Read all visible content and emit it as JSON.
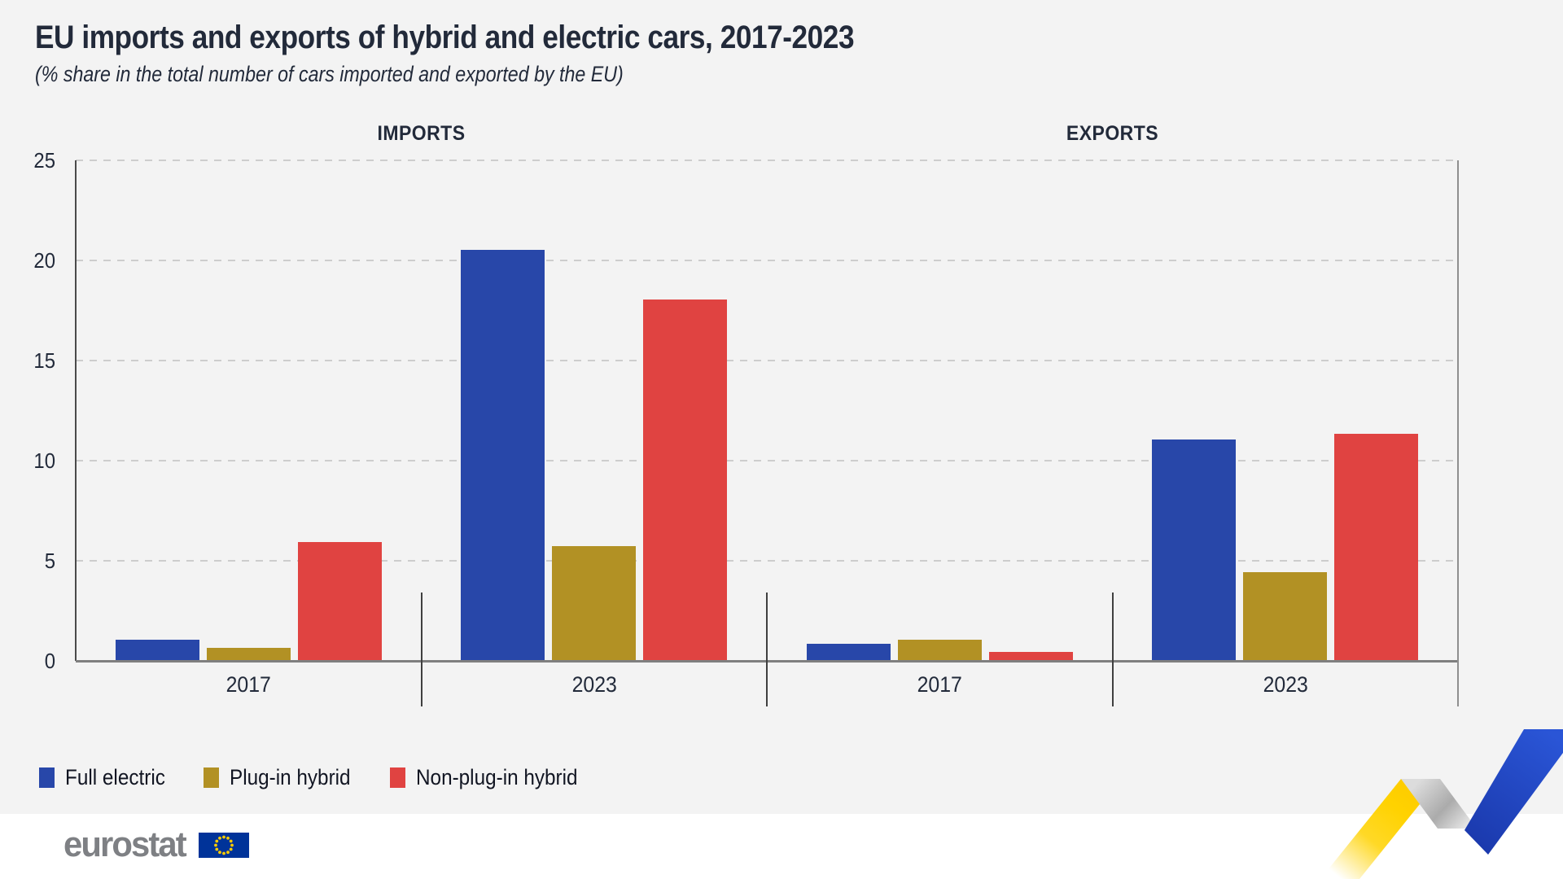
{
  "header": {
    "title": "EU imports and exports of hybrid and electric cars, 2017-2023",
    "subtitle": "(% share in the total number of cars imported and exported by the EU)"
  },
  "chart_data": {
    "type": "bar",
    "title": "EU imports and exports of hybrid and electric cars, 2017-2023",
    "subtitle": "(% share in the total number of cars imported and exported by the EU)",
    "unit": "% share",
    "panels": [
      {
        "label": "IMPORTS",
        "groups": [
          {
            "year": "2017",
            "values": [
              1.0,
              0.6,
              5.9
            ]
          },
          {
            "year": "2023",
            "values": [
              20.5,
              5.7,
              18.0
            ]
          }
        ]
      },
      {
        "label": "EXPORTS",
        "groups": [
          {
            "year": "2017",
            "values": [
              0.8,
              1.0,
              0.4
            ]
          },
          {
            "year": "2023",
            "values": [
              11.0,
              4.4,
              11.3
            ]
          }
        ]
      }
    ],
    "series": [
      {
        "name": "Full electric",
        "color": "#2847a9"
      },
      {
        "name": "Plug-in hybrid",
        "color": "#b29124"
      },
      {
        "name": "Non-plug-in hybrid",
        "color": "#e04341"
      }
    ],
    "y_axis": {
      "min": 0,
      "max": 25,
      "tick_step": 5,
      "ticks": [
        0,
        5,
        10,
        15,
        20,
        25
      ]
    },
    "grid": "horizontal-dashed",
    "legend_position": "bottom-left"
  },
  "footer": {
    "logo_text": "eurostat"
  },
  "colors": {
    "background": "#f3f3f3",
    "footer_background": "#ffffff",
    "text": "#222a3a",
    "axis": "#4a4a4a",
    "baseline": "#7f7f7f",
    "gridline": "#cdcdcd",
    "separator": "#3f3f3f",
    "eu_flag_blue": "#003399",
    "eu_star_yellow": "#ffcc00",
    "eurostat_gray": "#7e8084",
    "ribbon_yellow": "#ffd200",
    "ribbon_blue": "#2450c8",
    "ribbon_gray": "#bcbcbc"
  }
}
